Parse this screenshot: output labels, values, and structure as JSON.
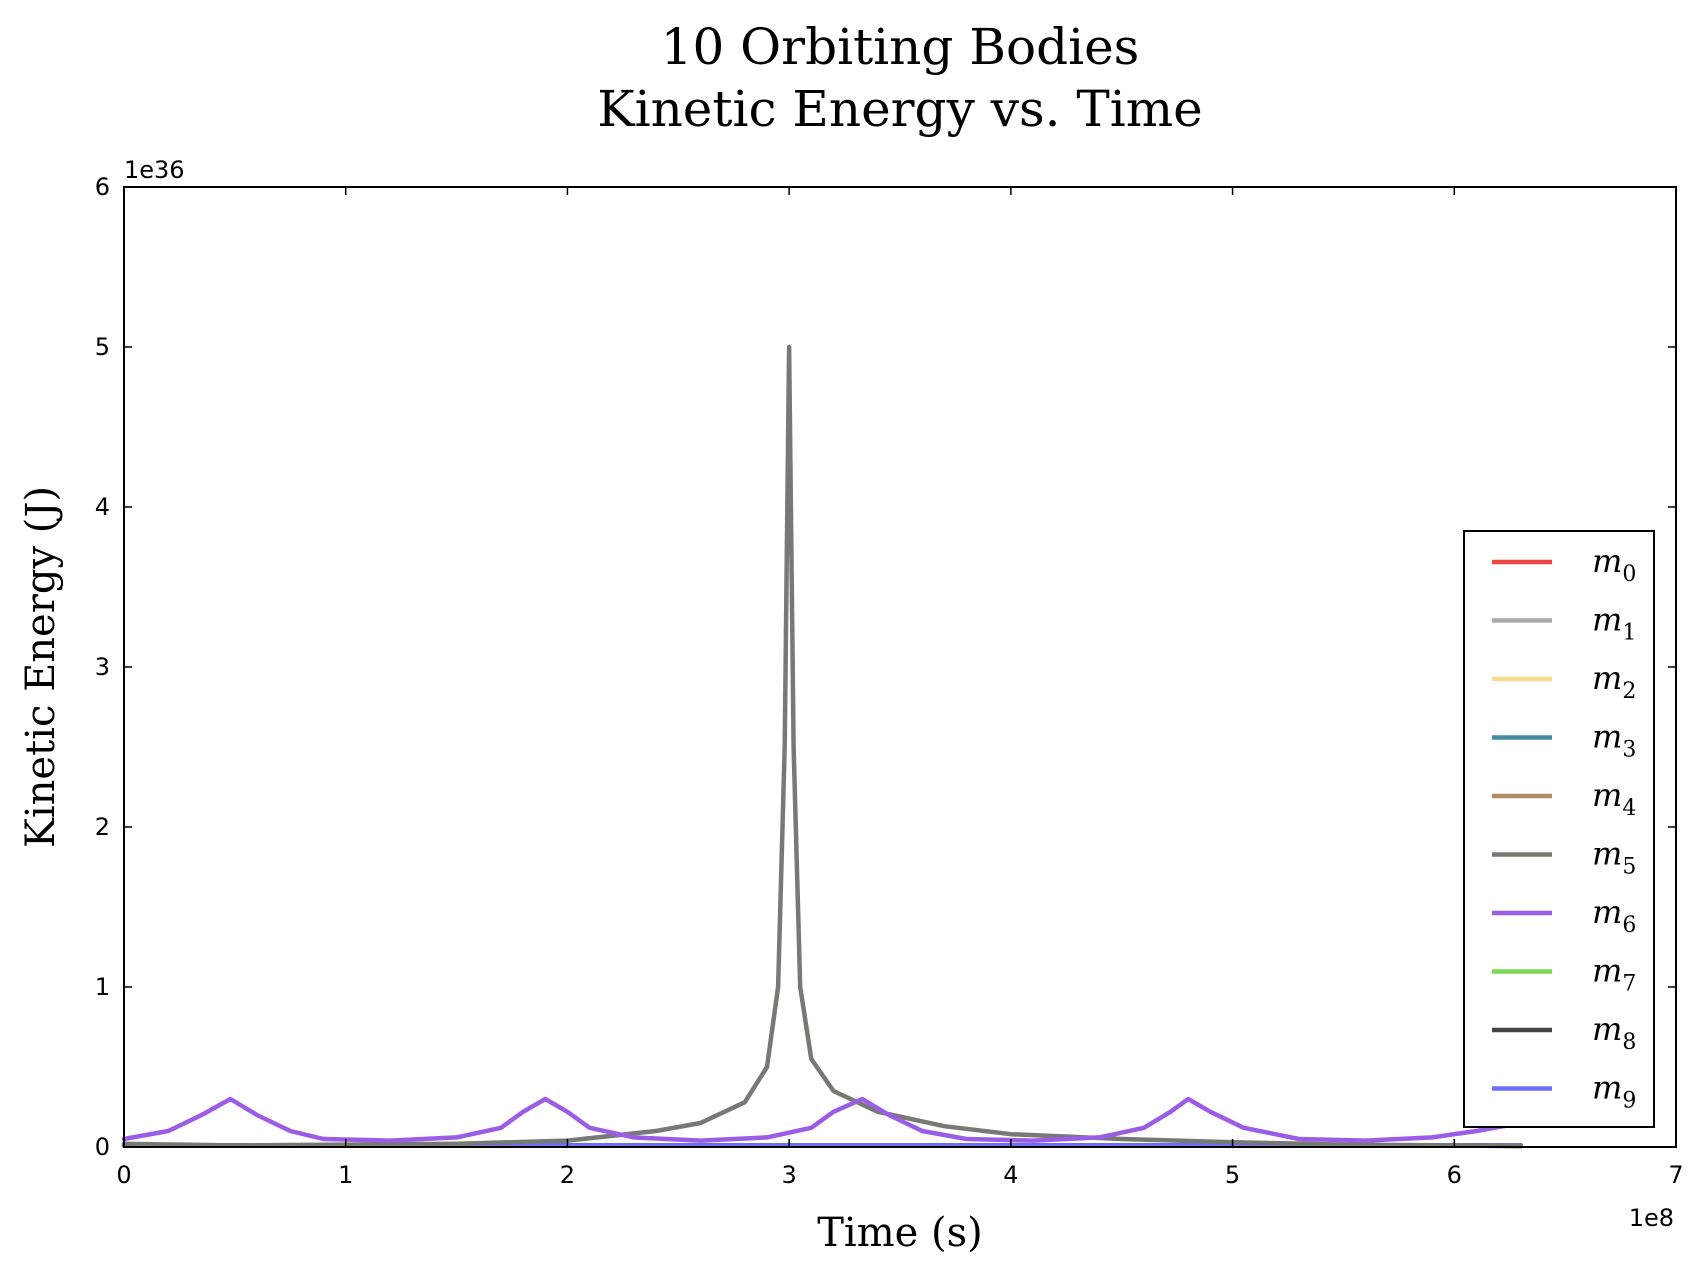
{
  "chart_data": {
    "type": "line",
    "title_line1": "10 Orbiting Bodies",
    "title_line2": "Kinetic Energy vs. Time",
    "xlabel": "Time (s)",
    "ylabel": "Kinetic Energy (J)",
    "x_offset_text": "1e8",
    "y_offset_text": "1e36",
    "xlim": [
      0,
      7
    ],
    "ylim": [
      0,
      6
    ],
    "x_ticks": [
      "0",
      "1",
      "2",
      "3",
      "4",
      "5",
      "6",
      "7"
    ],
    "y_ticks": [
      "0",
      "1",
      "2",
      "3",
      "4",
      "5",
      "6"
    ],
    "legend_position": "right",
    "series": [
      {
        "name": "m",
        "sub": "0",
        "color": "#ee4444",
        "x": [
          0,
          6.3
        ],
        "y": [
          0.01,
          0.01
        ]
      },
      {
        "name": "m",
        "sub": "1",
        "color": "#aaaaaa",
        "x": [
          0,
          6.3
        ],
        "y": [
          0.01,
          0.01
        ]
      },
      {
        "name": "m",
        "sub": "2",
        "color": "#f8dc8c",
        "x": [
          0,
          6.3
        ],
        "y": [
          0.01,
          0.01
        ]
      },
      {
        "name": "m",
        "sub": "3",
        "color": "#468ca5",
        "x": [
          0,
          6.3
        ],
        "y": [
          0.01,
          0.01
        ]
      },
      {
        "name": "m",
        "sub": "4",
        "color": "#b08c64",
        "x": [
          0,
          6.3
        ],
        "y": [
          0.01,
          0.01
        ]
      },
      {
        "name": "m",
        "sub": "5",
        "color": "#787874",
        "x": [
          0,
          0.5,
          1.0,
          1.5,
          2.0,
          2.4,
          2.6,
          2.8,
          2.9,
          2.95,
          2.98,
          3.0,
          3.02,
          3.05,
          3.1,
          3.2,
          3.4,
          3.7,
          4.0,
          4.5,
          5.0,
          5.5,
          6.0,
          6.3
        ],
        "y": [
          0.02,
          0.01,
          0.015,
          0.02,
          0.04,
          0.1,
          0.15,
          0.28,
          0.5,
          1.0,
          2.5,
          5.0,
          2.5,
          1.0,
          0.55,
          0.35,
          0.22,
          0.13,
          0.08,
          0.05,
          0.03,
          0.015,
          0.01,
          0.005
        ]
      },
      {
        "name": "m",
        "sub": "6",
        "color": "#9b5de5",
        "x": [
          0,
          0.2,
          0.35,
          0.48,
          0.6,
          0.75,
          0.9,
          1.2,
          1.5,
          1.7,
          1.8,
          1.9,
          2.0,
          2.1,
          2.3,
          2.6,
          2.9,
          3.1,
          3.2,
          3.33,
          3.45,
          3.6,
          3.8,
          4.1,
          4.4,
          4.6,
          4.72,
          4.8,
          4.9,
          5.05,
          5.3,
          5.6,
          5.9,
          6.1,
          6.3
        ],
        "y": [
          0.05,
          0.1,
          0.2,
          0.3,
          0.2,
          0.1,
          0.05,
          0.04,
          0.06,
          0.12,
          0.22,
          0.3,
          0.22,
          0.12,
          0.06,
          0.04,
          0.06,
          0.12,
          0.22,
          0.3,
          0.2,
          0.1,
          0.05,
          0.04,
          0.06,
          0.12,
          0.22,
          0.3,
          0.22,
          0.12,
          0.05,
          0.04,
          0.06,
          0.1,
          0.15
        ]
      },
      {
        "name": "m",
        "sub": "7",
        "color": "#7ed957",
        "x": [
          0,
          6.3
        ],
        "y": [
          0.01,
          0.01
        ]
      },
      {
        "name": "m",
        "sub": "8",
        "color": "#444444",
        "x": [
          0,
          6.3
        ],
        "y": [
          0.01,
          0.01
        ]
      },
      {
        "name": "m",
        "sub": "9",
        "color": "#7070ff",
        "x": [
          0,
          6.3
        ],
        "y": [
          0.01,
          0.01
        ]
      }
    ]
  }
}
